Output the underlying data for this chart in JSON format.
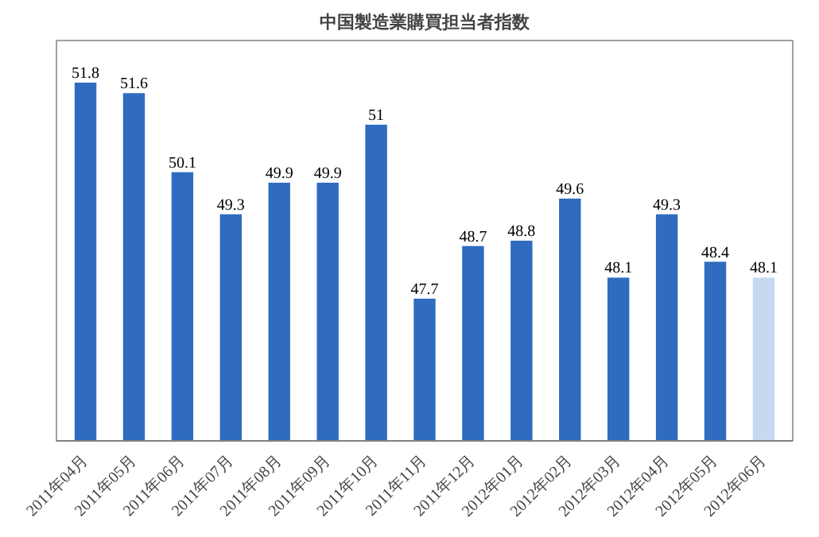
{
  "chart_data": {
    "type": "bar",
    "title": "中国製造業購買担当者指数",
    "categories": [
      "2011年04月",
      "2011年05月",
      "2011年06月",
      "2011年07月",
      "2011年08月",
      "2011年09月",
      "2011年10月",
      "2011年11月",
      "2011年12月",
      "2012年01月",
      "2012年02月",
      "2012年03月",
      "2012年04月",
      "2012年05月",
      "2012年06月"
    ],
    "values": [
      51.8,
      51.6,
      50.1,
      49.3,
      49.9,
      49.9,
      51,
      47.7,
      48.7,
      48.8,
      49.6,
      48.1,
      49.3,
      48.4,
      48.1
    ],
    "value_labels": [
      "51.8",
      "51.6",
      "50.1",
      "49.3",
      "49.9",
      "49.9",
      "51",
      "47.7",
      "48.7",
      "48.8",
      "49.6",
      "48.1",
      "49.3",
      "48.4",
      "48.1"
    ],
    "colors": [
      "#2f6cc0",
      "#2f6cc0",
      "#2f6cc0",
      "#2f6cc0",
      "#2f6cc0",
      "#2f6cc0",
      "#2f6cc0",
      "#2f6cc0",
      "#2f6cc0",
      "#2f6cc0",
      "#2f6cc0",
      "#2f6cc0",
      "#2f6cc0",
      "#2f6cc0",
      "#c5d9f1"
    ],
    "ylim": [
      45,
      52.6
    ],
    "grid": false
  }
}
